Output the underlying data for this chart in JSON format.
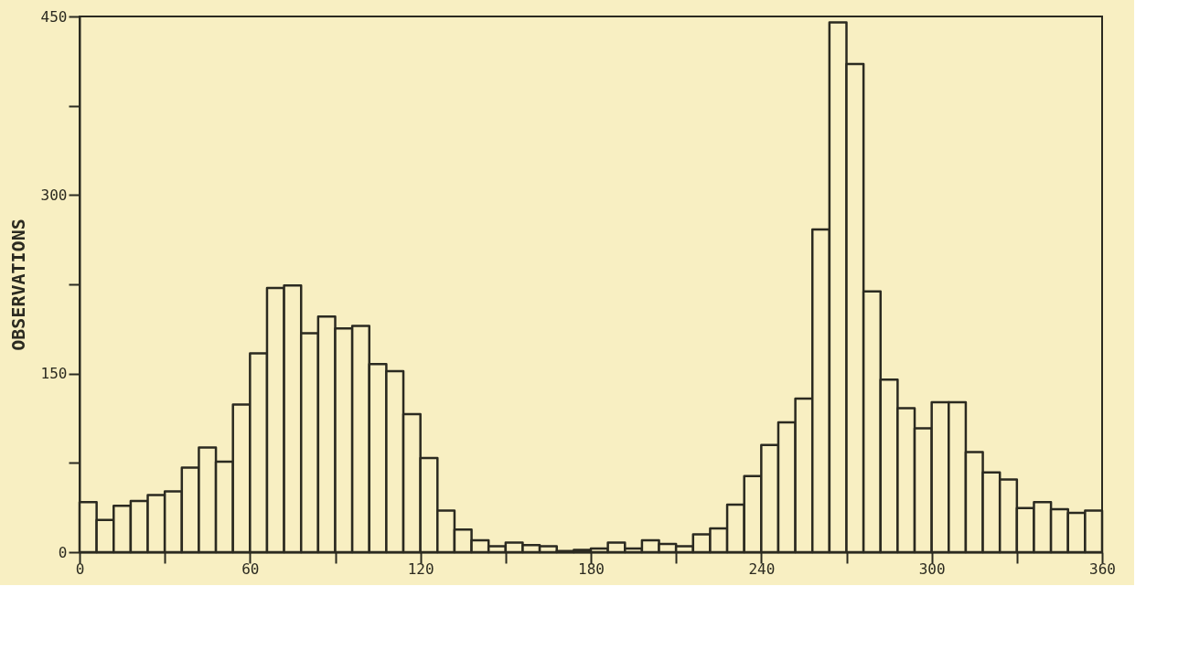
{
  "chart_data": {
    "type": "histogram",
    "ylabel": "OBSERVATIONS",
    "bins": [
      0,
      6,
      12,
      18,
      24,
      30,
      36,
      42,
      48,
      54,
      60,
      66,
      72,
      78,
      84,
      90,
      96,
      102,
      108,
      114,
      120,
      126,
      132,
      138,
      144,
      150,
      156,
      162,
      168,
      174,
      180,
      186,
      192,
      198,
      204,
      210,
      216,
      222,
      228,
      234,
      240,
      246,
      252,
      258,
      264,
      270,
      276,
      282,
      288,
      294,
      300,
      306,
      312,
      318,
      324,
      330,
      336,
      342,
      348,
      354,
      360
    ],
    "values": [
      42,
      27,
      39,
      43,
      48,
      51,
      71,
      88,
      76,
      124,
      167,
      222,
      224,
      184,
      198,
      188,
      190,
      158,
      152,
      116,
      79,
      35,
      19,
      10,
      5,
      8,
      6,
      5,
      1,
      2,
      3,
      8,
      3,
      10,
      7,
      5,
      15,
      20,
      40,
      64,
      90,
      109,
      129,
      271,
      445,
      410,
      219,
      145,
      121,
      104,
      126,
      126,
      84,
      67,
      61,
      37,
      42,
      36,
      33,
      35
    ],
    "color": "#2b2a20",
    "xlim": [
      0,
      360
    ],
    "xticks": [
      0,
      {
        "value": 30,
        "label": null
      },
      60,
      {
        "value": 90,
        "label": null
      },
      120,
      {
        "value": 150,
        "label": null
      },
      180,
      {
        "value": 210,
        "label": null
      },
      240,
      {
        "value": 270,
        "label": null
      },
      300,
      {
        "value": 330,
        "label": null
      },
      360
    ],
    "ylim": [
      0,
      450
    ],
    "yticks": [
      0,
      {
        "value": 75,
        "label": null
      },
      150,
      {
        "value": 225,
        "label": null
      },
      300,
      {
        "value": 375,
        "label": null
      },
      450
    ],
    "grid": false
  }
}
